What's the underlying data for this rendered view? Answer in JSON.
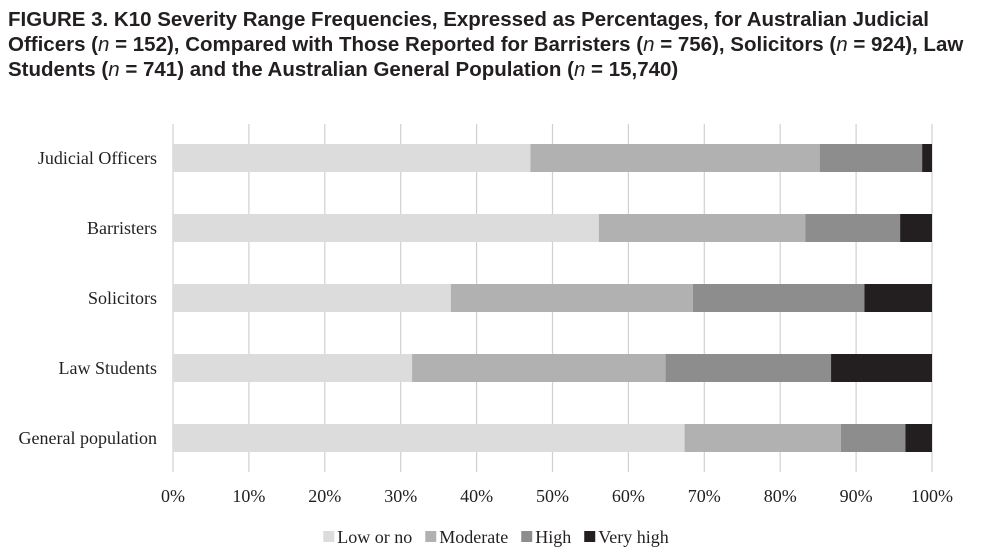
{
  "title": {
    "text": "FIGURE 3.  K10 Severity Range Frequencies, Expressed as Percentages, for Australian Judicial Officers (n = 152), Compared with Those Reported for Barristers (n = 756), Solicitors (n = 924), Law Students (n = 741) and the Australian General Population (n = 15,740)"
  },
  "chart_data": {
    "type": "bar",
    "orientation": "horizontal",
    "stacked": true,
    "title": "FIGURE 3.  K10 Severity Range Frequencies, Expressed as Percentages, for Australian Judicial Officers (n = 152), Compared with Those Reported for Barristers (n = 756), Solicitors (n = 924), Law Students (n = 741) and the Australian General Population (n = 15,740)",
    "categories": [
      "Judicial Officers",
      "Barristers",
      "Solicitors",
      "Law Students",
      "General population"
    ],
    "series": [
      {
        "name": "Low or no",
        "color": "#dcdcdc",
        "values": [
          47.1,
          56.1,
          36.6,
          31.5,
          67.4
        ]
      },
      {
        "name": "Moderate",
        "color": "#b1b1b1",
        "values": [
          38.1,
          27.2,
          31.9,
          33.4,
          20.6
        ]
      },
      {
        "name": "High",
        "color": "#8d8d8d",
        "values": [
          13.5,
          12.5,
          22.6,
          21.8,
          8.5
        ]
      },
      {
        "name": "Very high",
        "color": "#231f20",
        "values": [
          1.3,
          4.2,
          8.9,
          13.3,
          3.5
        ]
      }
    ],
    "xlim": [
      0,
      100
    ],
    "xticks": [
      "0%",
      "10%",
      "20%",
      "30%",
      "40%",
      "50%",
      "60%",
      "70%",
      "80%",
      "90%",
      "100%"
    ],
    "xlabel": "",
    "ylabel": "",
    "grid": "vertical",
    "gridline_color": "#d0d0d0",
    "legend_position": "bottom"
  }
}
